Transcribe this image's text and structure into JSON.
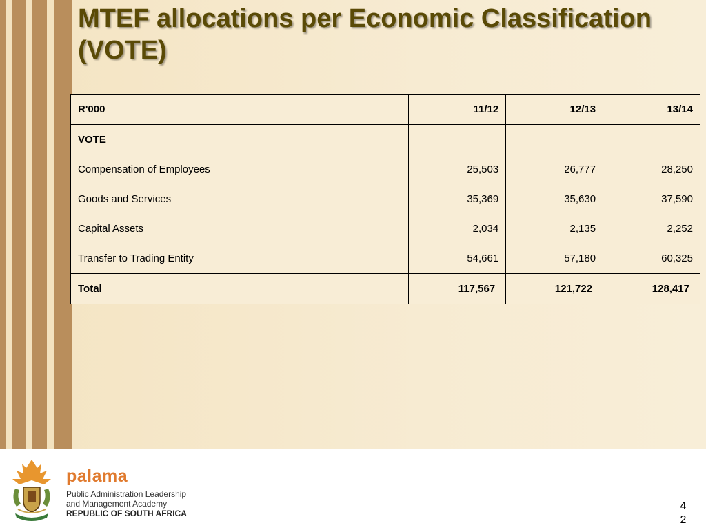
{
  "slide": {
    "title": "MTEF allocations per Economic Classification (VOTE)",
    "page_number": "42"
  },
  "table": {
    "header": {
      "label": "R'000",
      "years": [
        "11/12",
        "12/13",
        "13/14"
      ]
    },
    "section_label": "VOTE",
    "rows": [
      {
        "label": "Compensation of Employees",
        "values": [
          "25,503",
          "26,777",
          "28,250"
        ]
      },
      {
        "label": "Goods and Services",
        "values": [
          "35,369",
          "35,630",
          "37,590"
        ]
      },
      {
        "label": "Capital Assets",
        "values": [
          "2,034",
          "2,135",
          "2,252"
        ]
      },
      {
        "label": "Transfer to Trading Entity",
        "values": [
          "54,661",
          "57,180",
          "60,325"
        ]
      }
    ],
    "total": {
      "label": "Total",
      "values": [
        "117,567",
        "121,722",
        "128,417"
      ]
    }
  },
  "footer": {
    "brand": "palama",
    "org_line1": "Public Administration Leadership",
    "org_line2": "and Management Academy",
    "org_line3": "REPUBLIC OF SOUTH AFRICA",
    "crest_icon": "coat-of-arms-icon",
    "colors": {
      "brand": "#e07a2e",
      "title": "#5a4a06",
      "stripe": "#b98e5c"
    }
  }
}
